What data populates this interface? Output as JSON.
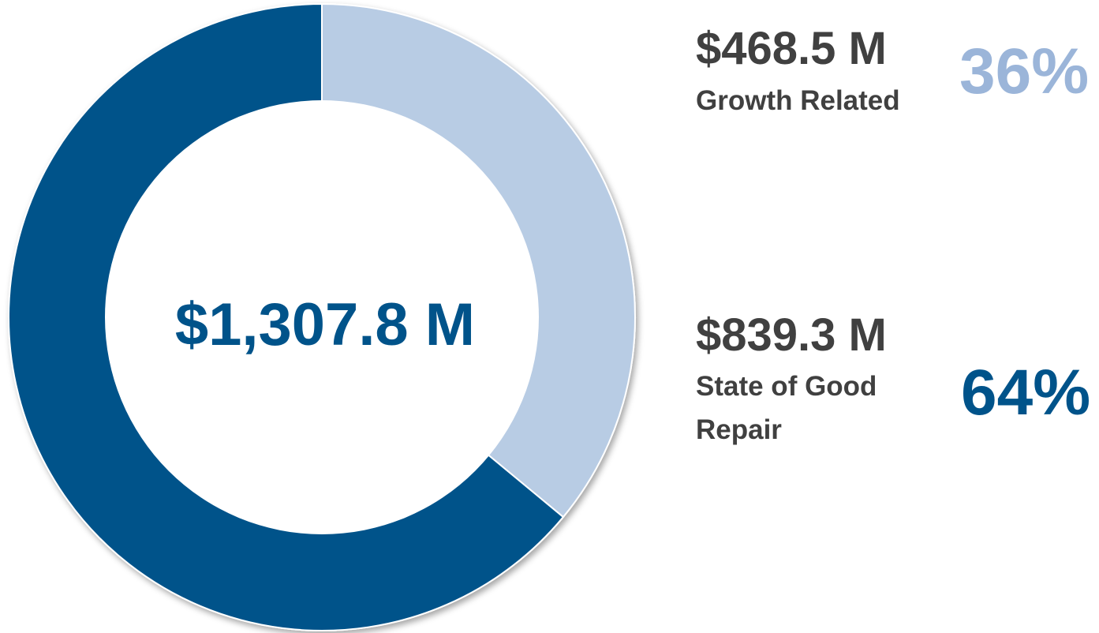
{
  "chart_data": {
    "type": "donut",
    "center_label": "$1,307.8 M",
    "categories": [
      "Growth Related",
      "State of Good Repair"
    ],
    "amount_labels": [
      "$468.5 M",
      "$839.3 M"
    ],
    "values": [
      36,
      64
    ],
    "value_labels": [
      "36%",
      "64%"
    ],
    "colors": [
      "#b8cce4",
      "#00538a"
    ],
    "label_colors": [
      "#9bb5d9",
      "#00538a"
    ]
  }
}
